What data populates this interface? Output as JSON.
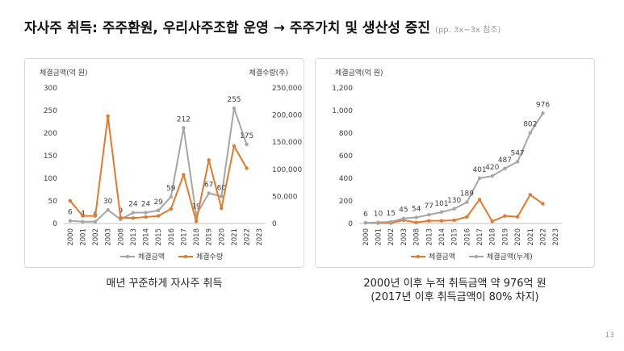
{
  "page": {
    "title": "자사주 취득: 주주환원, 우리사주조합 운영 → 주주가치 및 생산성 증진",
    "title_ref": "(pp. 3x~3x 참조)",
    "caption_left": "매년 꾸준하게 자사주 취득",
    "caption_right_line1": "2000년 이후 누적 취득금액 약 976억 원",
    "caption_right_line2": "(2017년 이후 취득금액이 80% 차지)",
    "page_number": "13"
  },
  "colors": {
    "gray": "#a6a6a6",
    "orange": "#e07b2e",
    "axis": "#bfbfbf",
    "text": "#404040"
  },
  "chart_data": [
    {
      "type": "line",
      "categories": [
        "2000",
        "2001",
        "2002",
        "2003",
        "2008",
        "2013",
        "2014",
        "2015",
        "2016",
        "2017",
        "2018",
        "2019",
        "2020",
        "2021",
        "2022",
        "2023"
      ],
      "ylabel": "체결금액(억 원)",
      "y2label": "체결수량(주)",
      "ylim": [
        0,
        300
      ],
      "yticks": [
        0,
        50,
        100,
        150,
        200,
        250,
        300
      ],
      "y2lim": [
        0,
        250000
      ],
      "y2ticks": [
        0,
        50000,
        100000,
        150000,
        200000,
        250000
      ],
      "y2tick_labels": [
        "0",
        "50,000",
        "100,000",
        "150,000",
        "200,000",
        "250,000"
      ],
      "legend_position": "bottom",
      "series": [
        {
          "name": "체결금액",
          "axis": "left",
          "color": "#a6a6a6",
          "values": [
            6,
            4,
            4,
            30,
            9,
            24,
            24,
            29,
            59,
            212,
            19,
            67,
            60,
            255,
            175,
            null
          ],
          "labels": [
            "6",
            "4",
            "4",
            "30",
            "9",
            "24",
            "24",
            "29",
            "59",
            "212",
            "19",
            "67",
            "60",
            "255",
            "175",
            ""
          ]
        },
        {
          "name": "체결수량",
          "axis": "right",
          "color": "#e07b2e",
          "values": [
            42000,
            14000,
            14000,
            198000,
            11000,
            10000,
            12000,
            14000,
            27000,
            90000,
            4000,
            117000,
            28000,
            143000,
            102000,
            null
          ]
        }
      ]
    },
    {
      "type": "line",
      "categories": [
        "2000",
        "2001",
        "2002",
        "2003",
        "2008",
        "2013",
        "2014",
        "2015",
        "2016",
        "2017",
        "2018",
        "2019",
        "2020",
        "2021",
        "2022",
        "2023"
      ],
      "ylabel": "체결금액(억 원)",
      "ylim": [
        0,
        1200
      ],
      "yticks": [
        0,
        200,
        400,
        600,
        800,
        1000,
        1200
      ],
      "ytick_labels": [
        "0",
        "200",
        "400",
        "600",
        "800",
        "1,000",
        "1,200"
      ],
      "legend_position": "bottom",
      "series": [
        {
          "name": "체결금액",
          "color": "#e07b2e",
          "values": [
            6,
            4,
            4,
            30,
            9,
            24,
            24,
            29,
            59,
            212,
            19,
            67,
            60,
            255,
            175,
            null
          ]
        },
        {
          "name": "체결금액(누계)",
          "color": "#a6a6a6",
          "values": [
            6,
            10,
            15,
            45,
            54,
            77,
            101,
            130,
            189,
            401,
            420,
            487,
            547,
            802,
            976,
            null
          ],
          "labels": [
            "6",
            "10",
            "15",
            "45",
            "54",
            "77",
            "101",
            "130",
            "189",
            "401",
            "420",
            "487",
            "547",
            "802",
            "976",
            ""
          ]
        }
      ]
    }
  ]
}
